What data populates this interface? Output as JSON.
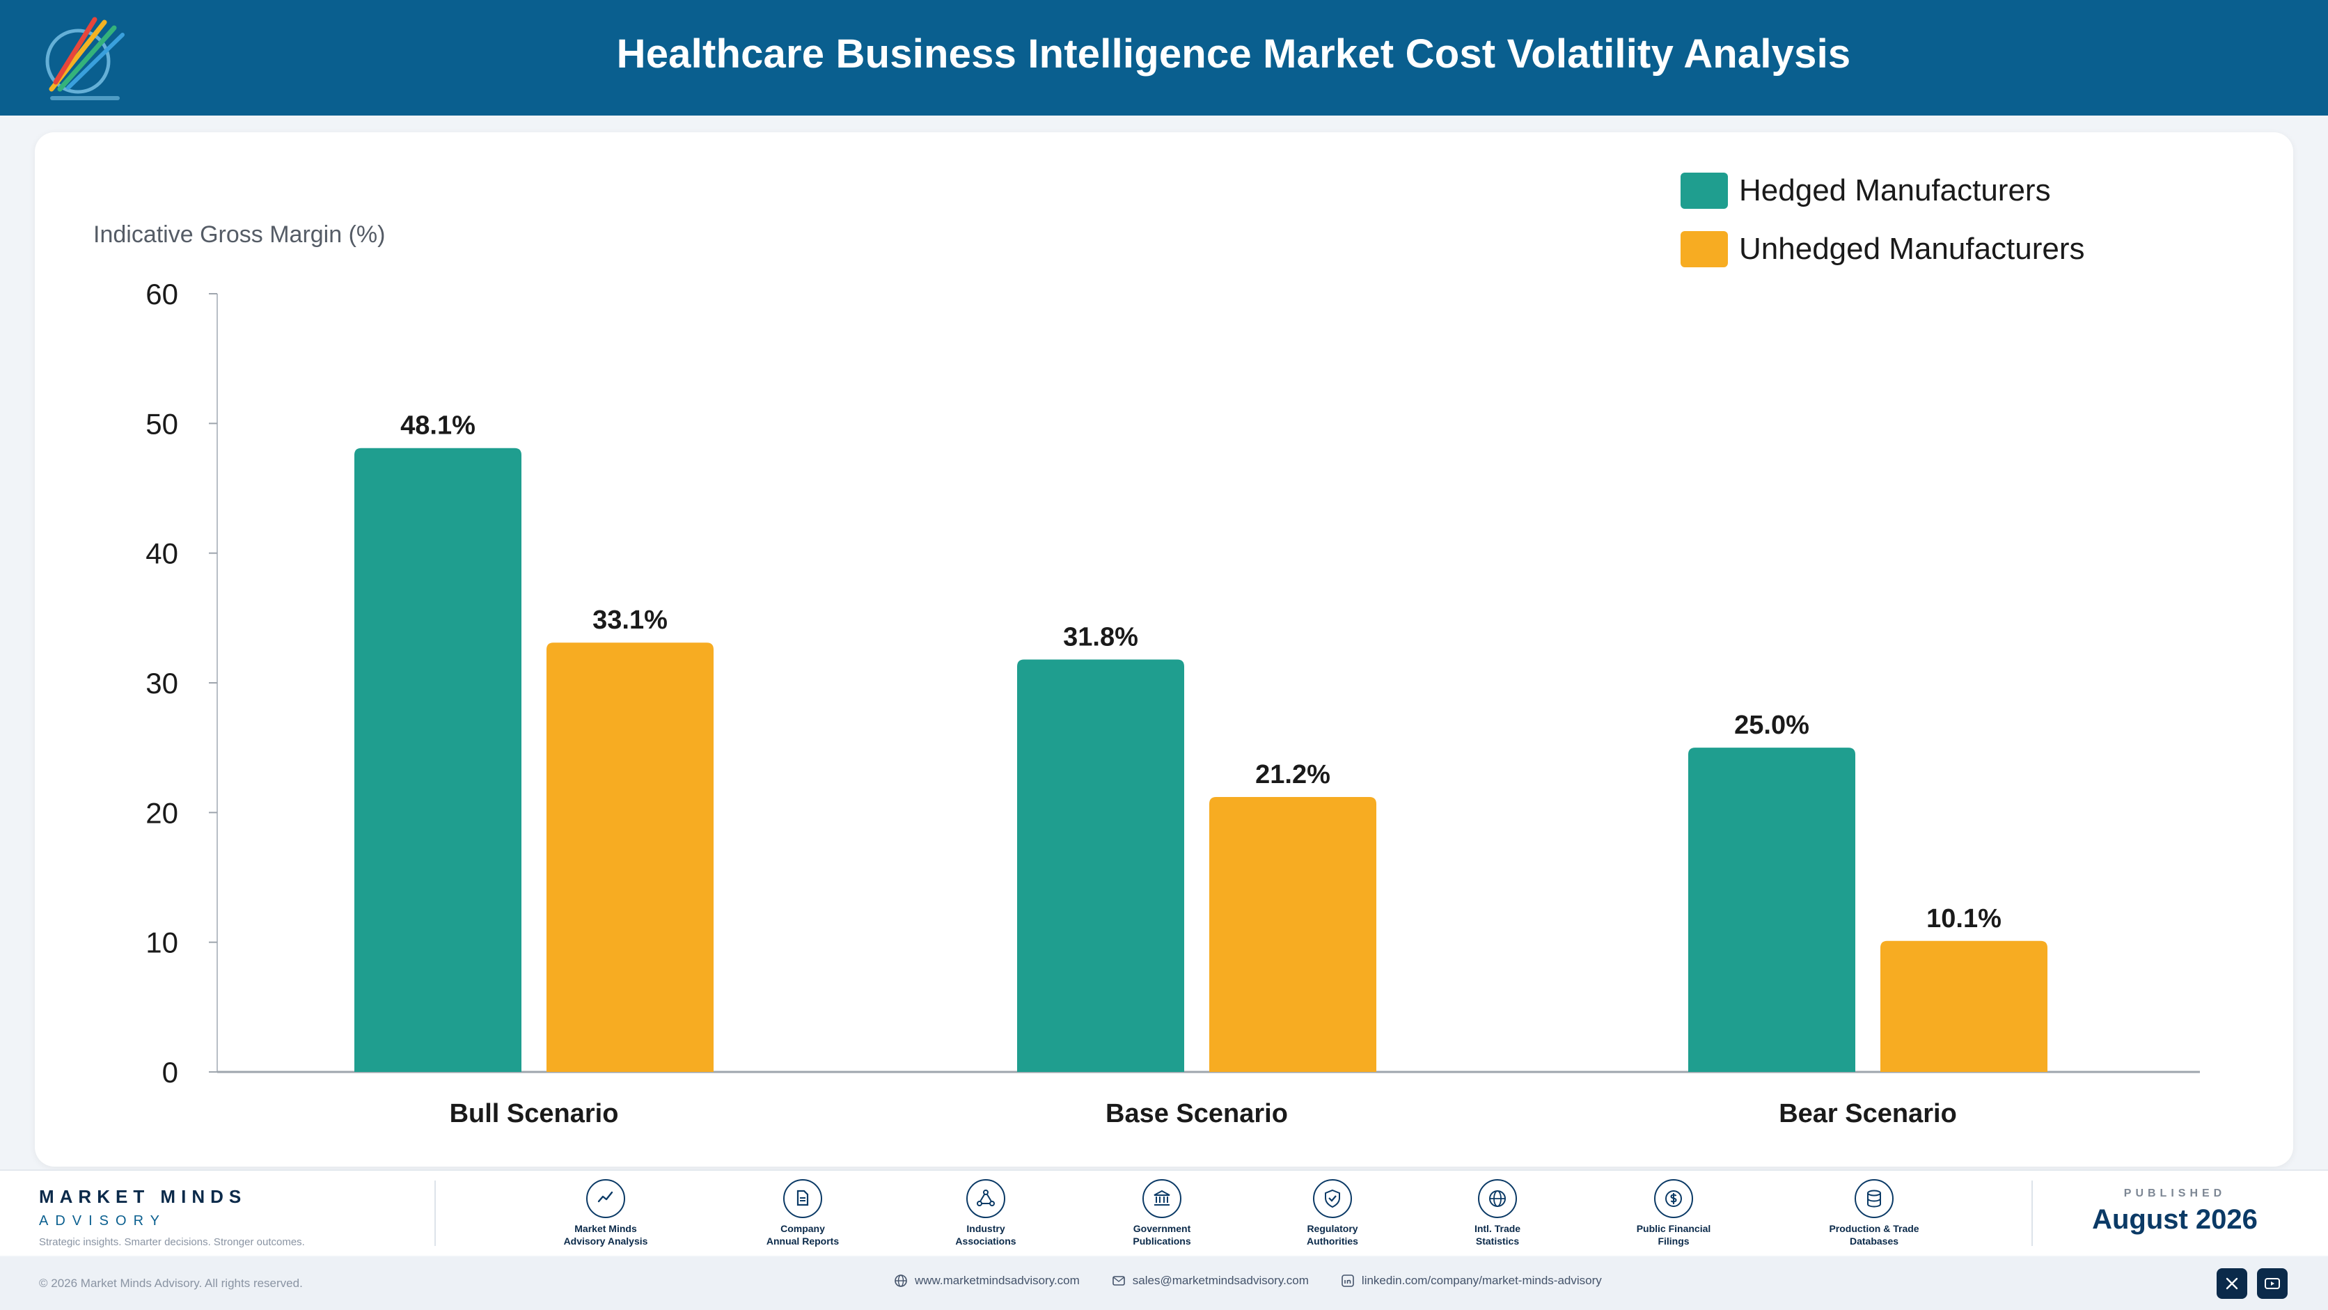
{
  "header": {
    "title": "Healthcare Business Intelligence Market Cost Volatility Analysis"
  },
  "colors": {
    "header_bg": "#0a5f8f",
    "hedged": "#1f9e8f",
    "unhedged": "#f7ac22",
    "brand_dark": "#0b2a4a"
  },
  "chart_data": {
    "type": "bar",
    "title": "",
    "ylabel": "Indicative Gross Margin (%)",
    "xlabel": "",
    "categories": [
      "Bull Scenario",
      "Base Scenario",
      "Bear Scenario"
    ],
    "series": [
      {
        "name": "Hedged Manufacturers",
        "values": [
          48.1,
          31.8,
          25.0
        ],
        "labels": [
          "48.1%",
          "31.8%",
          "25.0%"
        ],
        "color": "#1f9e8f"
      },
      {
        "name": "Unhedged Manufacturers",
        "values": [
          33.1,
          21.2,
          10.1
        ],
        "labels": [
          "33.1%",
          "21.2%",
          "10.1%"
        ],
        "color": "#f7ac22"
      }
    ],
    "ylim": [
      0,
      60
    ],
    "yticks": [
      0,
      10,
      20,
      30,
      40,
      50,
      60
    ],
    "grid": false,
    "legend_position": "top-right"
  },
  "footer": {
    "brand_name": "MARKET MINDS",
    "brand_sub": "ADVISORY",
    "tagline": "Strategic insights. Smarter decisions. Stronger outcomes.",
    "sources": [
      {
        "line1": "Market Minds",
        "line2": "Advisory Analysis",
        "icon": "chart-line-icon"
      },
      {
        "line1": "Company",
        "line2": "Annual Reports",
        "icon": "document-icon"
      },
      {
        "line1": "Industry",
        "line2": "Associations",
        "icon": "network-icon"
      },
      {
        "line1": "Government",
        "line2": "Publications",
        "icon": "government-building-icon"
      },
      {
        "line1": "Regulatory",
        "line2": "Authorities",
        "icon": "shield-check-icon"
      },
      {
        "line1": "Intl. Trade",
        "line2": "Statistics",
        "icon": "globe-icon"
      },
      {
        "line1": "Public Financial",
        "line2": "Filings",
        "icon": "dollar-coin-icon"
      },
      {
        "line1": "Production & Trade",
        "line2": "Databases",
        "icon": "database-icon"
      }
    ],
    "published_label": "PUBLISHED",
    "published_date": "August 2026",
    "copyright": "© 2026 Market Minds Advisory. All rights reserved.",
    "website": "www.marketmindsadvisory.com",
    "email": "sales@marketmindsadvisory.com",
    "linkedin": "linkedin.com/company/market-minds-advisory",
    "social": [
      "x-icon",
      "youtube-icon"
    ]
  }
}
